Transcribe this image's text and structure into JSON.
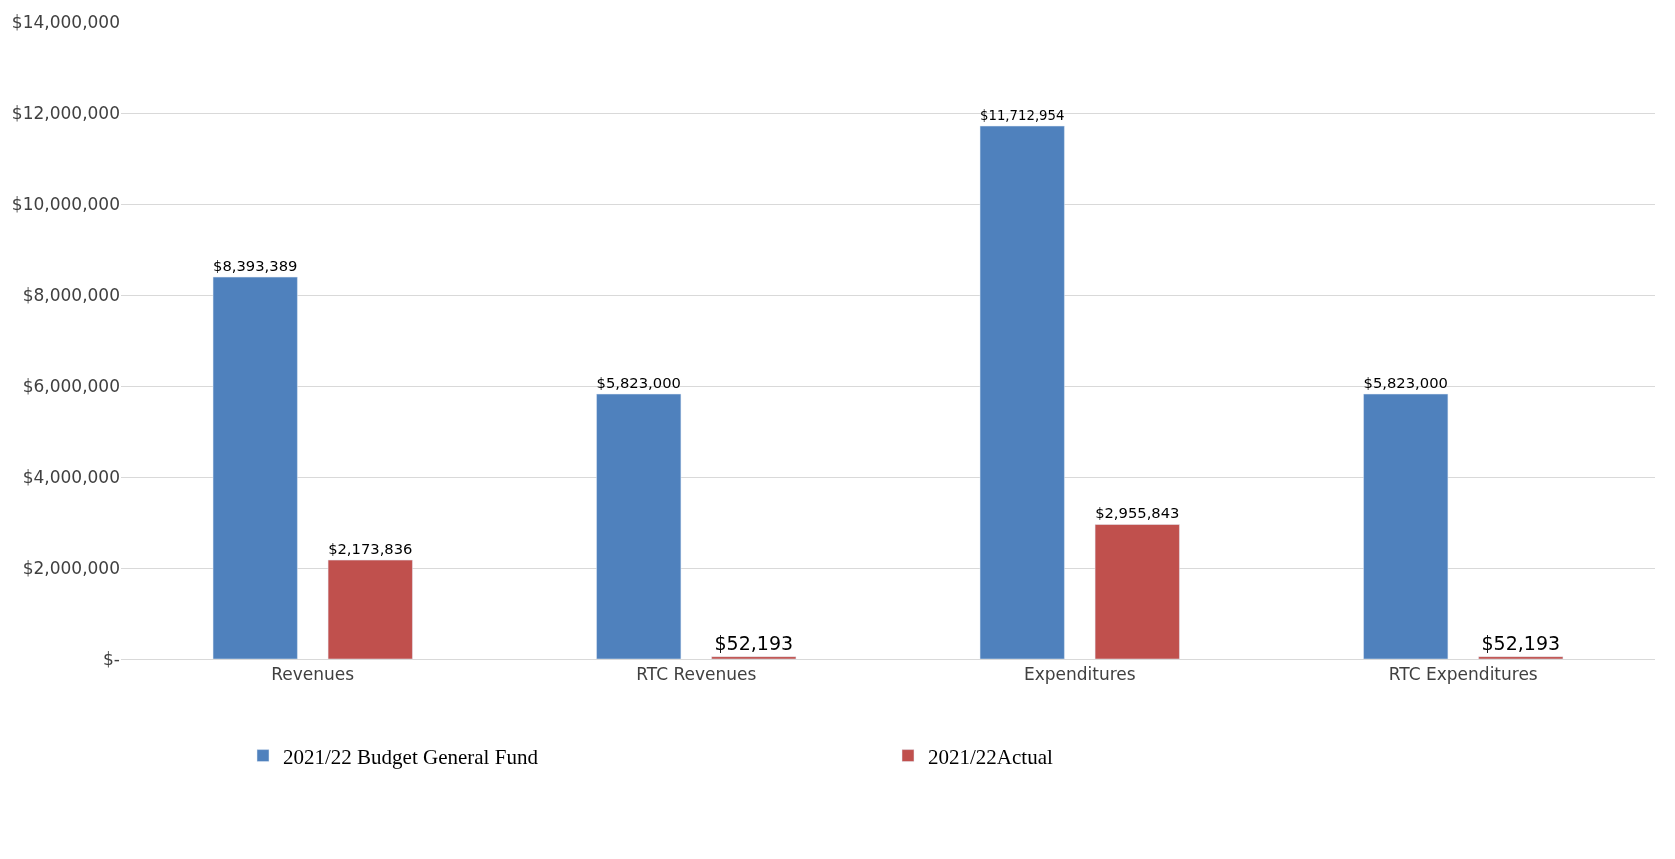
{
  "chart_data": {
    "type": "bar",
    "categories": [
      "Revenues",
      "RTC Revenues",
      "Expenditures",
      "RTC Expenditures"
    ],
    "series": [
      {
        "name": "2021/22 Budget General Fund",
        "color": "#4f81bd",
        "values": [
          8393389,
          5823000,
          11712954,
          5823000
        ],
        "value_labels": [
          "$8,393,389",
          "$5,823,000",
          "$11,712,954",
          "$5,823,000"
        ]
      },
      {
        "name": "2021/22Actual",
        "color": "#c0504d",
        "values": [
          2173836,
          52193,
          2955843,
          52193
        ],
        "value_labels": [
          "$2,173,836",
          "$52,193",
          "$2,955,843",
          "$52,193"
        ]
      }
    ],
    "ylim": [
      0,
      14000000
    ],
    "yticks": [
      {
        "value": 0,
        "label": "$-"
      },
      {
        "value": 2000000,
        "label": "$2,000,000"
      },
      {
        "value": 4000000,
        "label": "$4,000,000"
      },
      {
        "value": 6000000,
        "label": "$6,000,000"
      },
      {
        "value": 8000000,
        "label": "$8,000,000"
      },
      {
        "value": 10000000,
        "label": "$10,000,000"
      },
      {
        "value": 12000000,
        "label": "$12,000,000"
      },
      {
        "value": 14000000,
        "label": "$14,000,000"
      }
    ],
    "grid": "y",
    "legend": "bottom"
  }
}
